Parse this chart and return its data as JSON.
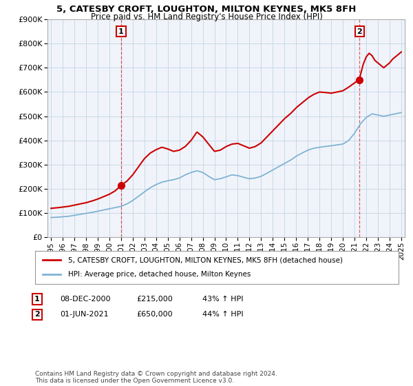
{
  "title": "5, CATESBY CROFT, LOUGHTON, MILTON KEYNES, MK5 8FH",
  "subtitle": "Price paid vs. HM Land Registry's House Price Index (HPI)",
  "legend_entry1": "5, CATESBY CROFT, LOUGHTON, MILTON KEYNES, MK5 8FH (detached house)",
  "legend_entry2": "HPI: Average price, detached house, Milton Keynes",
  "annotation1_date": "08-DEC-2000",
  "annotation1_price": "£215,000",
  "annotation1_hpi": "43% ↑ HPI",
  "annotation2_date": "01-JUN-2021",
  "annotation2_price": "£650,000",
  "annotation2_hpi": "44% ↑ HPI",
  "footer": "Contains HM Land Registry data © Crown copyright and database right 2024.\nThis data is licensed under the Open Government Licence v3.0.",
  "red_color": "#cc0000",
  "blue_color": "#7fb3d3",
  "ylim": [
    0,
    900000
  ],
  "yticks": [
    0,
    100000,
    200000,
    300000,
    400000,
    500000,
    600000,
    700000,
    800000,
    900000
  ],
  "sale1_year": 2001.0,
  "sale1_price": 215000,
  "sale2_year": 2021.42,
  "sale2_price": 650000,
  "background_color": "#f0f4fa",
  "grid_color": "#c8d8e8"
}
